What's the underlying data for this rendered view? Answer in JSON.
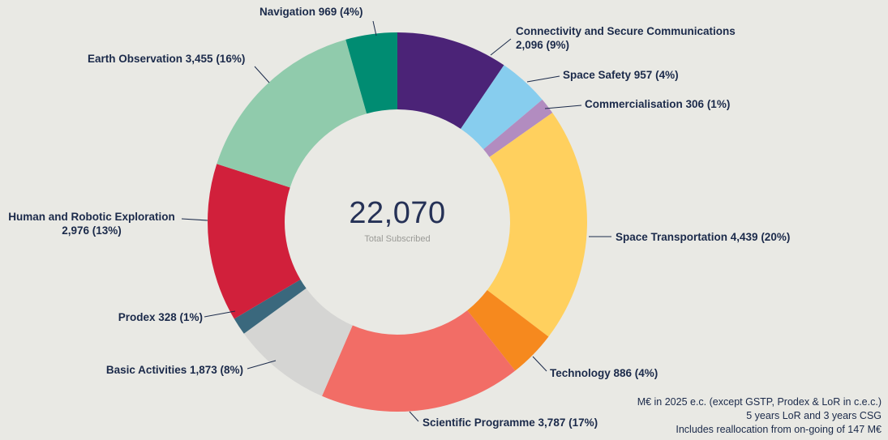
{
  "background": "#e9e9e4",
  "text_color": "#1b2a4a",
  "center": {
    "total": "22,070",
    "subtitle": "Total Subscribed"
  },
  "footer": {
    "lines": [
      "M€ in 2025 e.c. (except GSTP, Prodex & LoR in c.e.c.)",
      "5 years LoR and 3 years CSG",
      "Includes reallocation from on-going of 147 M€"
    ]
  },
  "chart_data": {
    "type": "pie",
    "subtype": "donut",
    "title": "",
    "total": 22070,
    "total_label": "Total Subscribed",
    "start_angle_deg": 0,
    "direction": "clockwise",
    "legend_position": "outside-labels",
    "slices": [
      {
        "name": "Connectivity and Secure Communications",
        "value": 2096,
        "pct": 9,
        "color": "#4b2377",
        "label": "Connectivity and Secure Communications 2,096 (9%)"
      },
      {
        "name": "Space Safety",
        "value": 957,
        "pct": 4,
        "color": "#87cdee",
        "label": "Space Safety 957 (4%)"
      },
      {
        "name": "Commercialisation",
        "value": 306,
        "pct": 1,
        "color": "#b28cc0",
        "label": "Commercialisation 306 (1%)"
      },
      {
        "name": "Space Transportation",
        "value": 4439,
        "pct": 20,
        "color": "#ffd05e",
        "label": "Space Transportation 4,439 (20%)"
      },
      {
        "name": "Technology",
        "value": 886,
        "pct": 4,
        "color": "#f6891e",
        "label": "Technology 886 (4%)"
      },
      {
        "name": "Scientific Programme",
        "value": 3787,
        "pct": 17,
        "color": "#f26d66",
        "label": "Scientific Programme 3,787 (17%)"
      },
      {
        "name": "Basic Activities",
        "value": 1873,
        "pct": 8,
        "color": "#d5d5d3",
        "label": "Basic Activities 1,873 (8%)"
      },
      {
        "name": "Prodex",
        "value": 328,
        "pct": 1,
        "color": "#3a687d",
        "label": "Prodex 328 (1%)"
      },
      {
        "name": "Human and Robotic Exploration",
        "value": 2976,
        "pct": 13,
        "color": "#d1203b",
        "label": "Human and Robotic Exploration 2,976 (13%)"
      },
      {
        "name": "Earth Observation",
        "value": 3455,
        "pct": 16,
        "color": "#90cbac",
        "label": "Earth Observation 3,455 (16%)"
      },
      {
        "name": "Navigation",
        "value": 969,
        "pct": 4,
        "color": "#008c72",
        "label": "Navigation 969 (4%)"
      }
    ]
  }
}
